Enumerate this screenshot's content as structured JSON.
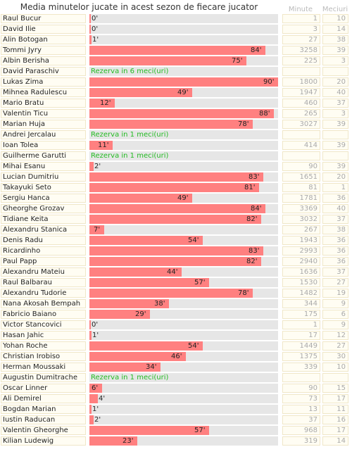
{
  "title": "Media minutelor jucate in acest sezon de fiecare jucator",
  "columns": {
    "minutes": "Minute",
    "matches": "Meciuri"
  },
  "chart_data": {
    "type": "bar",
    "orientation": "horizontal",
    "title": "Media minutelor jucate in acest sezon de fiecare jucator",
    "xlim": [
      0,
      90
    ],
    "rows": [
      {
        "name": "Raul Bucur",
        "avg": 0,
        "label": "0'",
        "minutes": "1",
        "matches": "10"
      },
      {
        "name": "David Ilie",
        "avg": 0,
        "label": "0'",
        "minutes": "3",
        "matches": "14"
      },
      {
        "name": "Alin Botogan",
        "avg": 1,
        "label": "1'",
        "minutes": "27",
        "matches": "38"
      },
      {
        "name": "Tommi Jyry",
        "avg": 84,
        "label": "84'",
        "minutes": "3258",
        "matches": "39"
      },
      {
        "name": "Albin Berisha",
        "avg": 75,
        "label": "75'",
        "minutes": "225",
        "matches": "3"
      },
      {
        "name": "David Paraschiv",
        "reserve": "Rezerva in 6 meci(uri)",
        "minutes": "",
        "matches": ""
      },
      {
        "name": "Lukas Zima",
        "avg": 90,
        "label": "90'",
        "minutes": "1800",
        "matches": "20"
      },
      {
        "name": "Mihnea Radulescu",
        "avg": 49,
        "label": "49'",
        "minutes": "1947",
        "matches": "40"
      },
      {
        "name": "Mario Bratu",
        "avg": 12,
        "label": "12'",
        "minutes": "460",
        "matches": "37"
      },
      {
        "name": "Valentin Ticu",
        "avg": 88,
        "label": "88'",
        "minutes": "265",
        "matches": "3"
      },
      {
        "name": "Marian Huja",
        "avg": 78,
        "label": "78'",
        "minutes": "3027",
        "matches": "39"
      },
      {
        "name": "Andrei Jercalau",
        "reserve": "Rezerva in 1 meci(uri)",
        "minutes": "",
        "matches": ""
      },
      {
        "name": "Ioan Tolea",
        "avg": 11,
        "label": "11'",
        "minutes": "414",
        "matches": "39"
      },
      {
        "name": "Guilherme Garutti",
        "reserve": "Rezerva in 1 meci(uri)",
        "minutes": "",
        "matches": ""
      },
      {
        "name": "Mihai Esanu",
        "avg": 2,
        "label": "2'",
        "minutes": "90",
        "matches": "39"
      },
      {
        "name": "Lucian Dumitriu",
        "avg": 83,
        "label": "83'",
        "minutes": "1651",
        "matches": "20"
      },
      {
        "name": "Takayuki Seto",
        "avg": 81,
        "label": "81'",
        "minutes": "81",
        "matches": "1"
      },
      {
        "name": "Sergiu Hanca",
        "avg": 49,
        "label": "49'",
        "minutes": "1781",
        "matches": "36"
      },
      {
        "name": "Gheorghe Grozav",
        "avg": 84,
        "label": "84'",
        "minutes": "3369",
        "matches": "40"
      },
      {
        "name": "Tidiane Keita",
        "avg": 82,
        "label": "82'",
        "minutes": "3032",
        "matches": "37"
      },
      {
        "name": "Alexandru Stanica",
        "avg": 7,
        "label": "7'",
        "minutes": "267",
        "matches": "38"
      },
      {
        "name": "Denis Radu",
        "avg": 54,
        "label": "54'",
        "minutes": "1943",
        "matches": "36"
      },
      {
        "name": "Ricardinho",
        "avg": 83,
        "label": "83'",
        "minutes": "2993",
        "matches": "36"
      },
      {
        "name": "Paul Papp",
        "avg": 82,
        "label": "82'",
        "minutes": "2940",
        "matches": "36"
      },
      {
        "name": "Alexandru Mateiu",
        "avg": 44,
        "label": "44'",
        "minutes": "1636",
        "matches": "37"
      },
      {
        "name": "Raul Balbarau",
        "avg": 57,
        "label": "57'",
        "minutes": "1530",
        "matches": "27"
      },
      {
        "name": "Alexandru Tudorie",
        "avg": 78,
        "label": "78'",
        "minutes": "1482",
        "matches": "19"
      },
      {
        "name": "Nana Akosah Bempah",
        "avg": 38,
        "label": "38'",
        "minutes": "344",
        "matches": "9"
      },
      {
        "name": "Fabricio Baiano",
        "avg": 29,
        "label": "29'",
        "minutes": "175",
        "matches": "6"
      },
      {
        "name": "Victor Stancovici",
        "avg": 0,
        "label": "0'",
        "minutes": "1",
        "matches": "9"
      },
      {
        "name": "Hasan Jahic",
        "avg": 1,
        "label": "1'",
        "minutes": "17",
        "matches": "12"
      },
      {
        "name": "Yohan Roche",
        "avg": 54,
        "label": "54'",
        "minutes": "1449",
        "matches": "27"
      },
      {
        "name": "Christian Irobiso",
        "avg": 46,
        "label": "46'",
        "minutes": "1375",
        "matches": "30"
      },
      {
        "name": "Herman Moussaki",
        "avg": 34,
        "label": "34'",
        "minutes": "339",
        "matches": "10"
      },
      {
        "name": "Augustin Dumitrache",
        "reserve": "Rezerva in 1 meci(uri)",
        "minutes": "",
        "matches": ""
      },
      {
        "name": "Oscar Linner",
        "avg": 6,
        "label": "6'",
        "minutes": "90",
        "matches": "15"
      },
      {
        "name": "Ali Demirel",
        "avg": 4,
        "label": "4'",
        "minutes": "73",
        "matches": "17"
      },
      {
        "name": "Bogdan Marian",
        "avg": 1,
        "label": "1'",
        "minutes": "13",
        "matches": "11"
      },
      {
        "name": "Iustin Raducan",
        "avg": 2,
        "label": "2'",
        "minutes": "37",
        "matches": "16"
      },
      {
        "name": "Valentin Gheorghe",
        "avg": 57,
        "label": "57'",
        "minutes": "968",
        "matches": "17"
      },
      {
        "name": "Kilian Ludewig",
        "avg": 23,
        "label": "23'",
        "minutes": "319",
        "matches": "14"
      }
    ]
  },
  "colors": {
    "bar": "#ff8080",
    "track": "#e6e6e6",
    "reserve_text": "#22bb22"
  }
}
